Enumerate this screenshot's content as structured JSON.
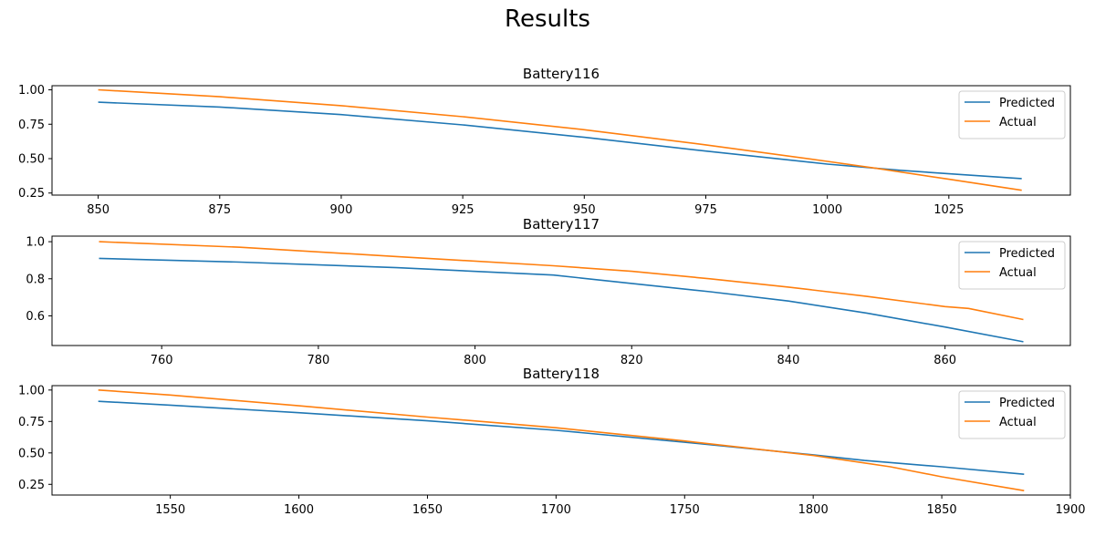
{
  "figure": {
    "title": "Results",
    "colors": {
      "predicted": "#1f77b4",
      "actual": "#ff7f0e"
    }
  },
  "chart_data": [
    {
      "type": "line",
      "title": "Battery116",
      "xlabel": "",
      "ylabel": "",
      "xlim": [
        840.5,
        1050
      ],
      "ylim": [
        0.235,
        1.03
      ],
      "xticks": [
        850,
        875,
        900,
        925,
        950,
        975,
        1000,
        1025
      ],
      "yticks": [
        0.25,
        0.5,
        0.75,
        1.0
      ],
      "ytick_decimals": 2,
      "grid": false,
      "legend_position": "top-right",
      "series": [
        {
          "name": "Predicted",
          "color": "#1f77b4",
          "x": [
            850,
            875,
            900,
            925,
            950,
            975,
            1000,
            1015,
            1025,
            1040
          ],
          "y": [
            0.91,
            0.875,
            0.82,
            0.745,
            0.655,
            0.555,
            0.46,
            0.415,
            0.39,
            0.355
          ]
        },
        {
          "name": "Actual",
          "color": "#ff7f0e",
          "x": [
            850,
            875,
            900,
            925,
            950,
            975,
            1000,
            1010,
            1025,
            1040
          ],
          "y": [
            1.0,
            0.95,
            0.885,
            0.805,
            0.71,
            0.6,
            0.48,
            0.43,
            0.35,
            0.27
          ]
        }
      ]
    },
    {
      "type": "line",
      "title": "Battery117",
      "xlabel": "",
      "ylabel": "",
      "xlim": [
        746,
        876
      ],
      "ylim": [
        0.44,
        1.03
      ],
      "xticks": [
        760,
        780,
        800,
        820,
        840,
        860
      ],
      "yticks": [
        0.6,
        0.8,
        1.0
      ],
      "ytick_decimals": 1,
      "grid": false,
      "legend_position": "top-right",
      "series": [
        {
          "name": "Predicted",
          "color": "#1f77b4",
          "x": [
            752,
            770,
            790,
            810,
            820,
            830,
            840,
            850,
            860,
            870
          ],
          "y": [
            0.91,
            0.89,
            0.86,
            0.82,
            0.775,
            0.73,
            0.68,
            0.615,
            0.54,
            0.46
          ]
        },
        {
          "name": "Actual",
          "color": "#ff7f0e",
          "x": [
            752,
            770,
            790,
            810,
            820,
            830,
            840,
            850,
            860,
            863,
            870
          ],
          "y": [
            1.0,
            0.97,
            0.92,
            0.87,
            0.84,
            0.8,
            0.755,
            0.705,
            0.65,
            0.64,
            0.58
          ]
        }
      ]
    },
    {
      "type": "line",
      "title": "Battery118",
      "xlabel": "",
      "ylabel": "",
      "xlim": [
        1504,
        1900
      ],
      "ylim": [
        0.165,
        1.035
      ],
      "xticks": [
        1550,
        1600,
        1650,
        1700,
        1750,
        1800,
        1850,
        1900
      ],
      "yticks": [
        0.25,
        0.5,
        0.75,
        1.0
      ],
      "ytick_decimals": 2,
      "grid": false,
      "legend_position": "top-right",
      "series": [
        {
          "name": "Predicted",
          "color": "#1f77b4",
          "x": [
            1522,
            1550,
            1600,
            1650,
            1700,
            1750,
            1800,
            1820,
            1850,
            1882
          ],
          "y": [
            0.91,
            0.88,
            0.82,
            0.755,
            0.68,
            0.585,
            0.485,
            0.44,
            0.39,
            0.33
          ]
        },
        {
          "name": "Actual",
          "color": "#ff7f0e",
          "x": [
            1522,
            1550,
            1600,
            1650,
            1680,
            1700,
            1750,
            1800,
            1830,
            1850,
            1882
          ],
          "y": [
            1.0,
            0.96,
            0.875,
            0.785,
            0.735,
            0.7,
            0.595,
            0.48,
            0.39,
            0.31,
            0.2
          ]
        }
      ]
    }
  ]
}
